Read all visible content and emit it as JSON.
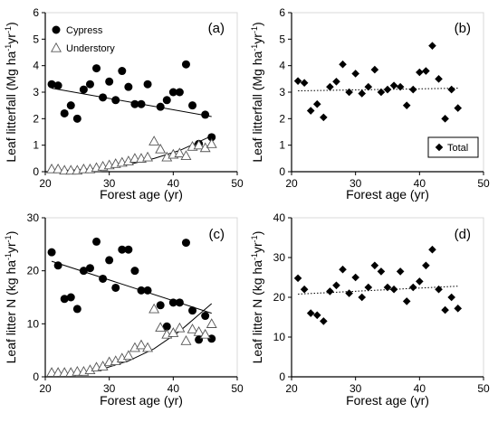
{
  "chart_data": [
    {
      "panel": "(a)",
      "type": "scatter",
      "xlabel": "Forest age (yr)",
      "ylabel": "Leaf litterfall (Mg ha⁻¹yr⁻¹)",
      "xlim": [
        20,
        50
      ],
      "ylim": [
        0,
        6
      ],
      "xticks": [
        20,
        30,
        40,
        50
      ],
      "yticks": [
        0,
        1,
        2,
        3,
        4,
        5,
        6
      ],
      "legend": {
        "position": "top-left",
        "entries": [
          "Cypress",
          "Understory"
        ]
      },
      "series": [
        {
          "name": "Cypress",
          "marker": "filled-circle",
          "x": [
            21,
            22,
            23,
            24,
            25,
            26,
            27,
            28,
            29,
            30,
            31,
            32,
            33,
            34,
            35,
            36,
            38,
            39,
            40,
            41,
            42,
            43,
            44,
            45,
            46
          ],
          "y": [
            3.3,
            3.25,
            2.2,
            2.5,
            2.0,
            3.1,
            3.3,
            3.9,
            2.8,
            3.4,
            2.7,
            3.8,
            3.2,
            2.55,
            2.55,
            3.3,
            2.45,
            2.7,
            3.0,
            3.0,
            4.05,
            2.5,
            1.05,
            2.15,
            1.3
          ]
        },
        {
          "name": "Understory",
          "marker": "open-triangle",
          "x": [
            21,
            22,
            23,
            24,
            25,
            26,
            27,
            28,
            29,
            30,
            31,
            32,
            33,
            34,
            35,
            36,
            37,
            38,
            39,
            40,
            41,
            42,
            43,
            44,
            45,
            46
          ],
          "y": [
            0.1,
            0.1,
            0.05,
            0.05,
            0.05,
            0.1,
            0.1,
            0.15,
            0.2,
            0.25,
            0.3,
            0.35,
            0.4,
            0.5,
            0.5,
            0.55,
            1.15,
            0.85,
            0.55,
            0.65,
            0.7,
            0.6,
            0.95,
            1.0,
            0.9,
            1.05
          ]
        }
      ],
      "trendlines": [
        {
          "series": "Cypress",
          "style": "solid",
          "x": [
            21,
            46
          ],
          "y": [
            3.15,
            2.08
          ]
        },
        {
          "series": "Understory",
          "style": "solid",
          "x": [
            21,
            25,
            29,
            33,
            37,
            41,
            46
          ],
          "y": [
            0.03,
            0.07,
            0.14,
            0.27,
            0.5,
            0.8,
            1.35
          ]
        }
      ]
    },
    {
      "panel": "(b)",
      "type": "scatter",
      "xlabel": "Forest age (yr)",
      "ylabel": "Leaf litterfall (Mg ha⁻¹yr⁻¹)",
      "xlim": [
        20,
        50
      ],
      "ylim": [
        0,
        6
      ],
      "xticks": [
        20,
        30,
        40,
        50
      ],
      "yticks": [
        0,
        1,
        2,
        3,
        4,
        5,
        6
      ],
      "legend": {
        "position": "bottom-right",
        "entries": [
          "Total"
        ]
      },
      "series": [
        {
          "name": "Total",
          "marker": "filled-diamond",
          "x": [
            21,
            22,
            23,
            24,
            25,
            26,
            27,
            28,
            29,
            30,
            31,
            32,
            33,
            34,
            35,
            36,
            37,
            38,
            39,
            40,
            41,
            42,
            43,
            44,
            45,
            46
          ],
          "y": [
            3.42,
            3.35,
            2.3,
            2.55,
            2.05,
            3.2,
            3.4,
            4.05,
            3.0,
            3.7,
            2.95,
            3.2,
            3.85,
            3.0,
            3.1,
            3.25,
            3.2,
            2.5,
            3.1,
            3.75,
            3.8,
            4.75,
            3.5,
            2.0,
            3.1,
            2.4
          ]
        }
      ],
      "trendlines": [
        {
          "series": "Total",
          "style": "dotted",
          "x": [
            21,
            46
          ],
          "y": [
            3.05,
            3.15
          ]
        }
      ]
    },
    {
      "panel": "(c)",
      "type": "scatter",
      "xlabel": "Forest age (yr)",
      "ylabel": "Leaf litter N (kg ha⁻¹yr⁻¹)",
      "xlim": [
        20,
        50
      ],
      "ylim": [
        0,
        30
      ],
      "xticks": [
        20,
        30,
        40,
        50
      ],
      "yticks": [
        0,
        10,
        20,
        30
      ],
      "series": [
        {
          "name": "Cypress",
          "marker": "filled-circle",
          "x": [
            21,
            22,
            23,
            24,
            25,
            26,
            27,
            28,
            29,
            30,
            31,
            32,
            33,
            34,
            35,
            36,
            38,
            39,
            40,
            41,
            42,
            43,
            44,
            45,
            46
          ],
          "y": [
            23.5,
            21,
            14.7,
            15.0,
            12.8,
            20.0,
            20.5,
            25.5,
            18.5,
            22.0,
            16.8,
            24.0,
            24.0,
            20.0,
            16.3,
            16.3,
            13.5,
            9.5,
            14.0,
            14.0,
            25.3,
            12.5,
            7.0,
            11.5,
            7.2
          ]
        },
        {
          "name": "Understory",
          "marker": "open-triangle",
          "x": [
            21,
            22,
            23,
            24,
            25,
            26,
            27,
            28,
            29,
            30,
            31,
            32,
            33,
            34,
            35,
            36,
            37,
            38,
            39,
            40,
            41,
            42,
            43,
            44,
            45,
            46
          ],
          "y": [
            0.8,
            0.8,
            0.8,
            0.8,
            1.0,
            1.0,
            1.3,
            1.8,
            2.0,
            2.8,
            3.0,
            3.5,
            4.0,
            5.5,
            6.0,
            5.5,
            12.8,
            9.3,
            8.0,
            8.3,
            9.2,
            6.8,
            9.0,
            8.5,
            8.0,
            10.0
          ]
        }
      ],
      "trendlines": [
        {
          "series": "Cypress",
          "style": "solid",
          "x": [
            21,
            46
          ],
          "y": [
            21.8,
            12.0
          ]
        },
        {
          "series": "Understory",
          "style": "solid",
          "x": [
            21,
            25,
            29,
            33,
            37,
            41,
            46
          ],
          "y": [
            0.3,
            0.7,
            1.5,
            3.0,
            5.3,
            8.6,
            13.8
          ]
        }
      ]
    },
    {
      "panel": "(d)",
      "type": "scatter",
      "xlabel": "Forest age (yr)",
      "ylabel": "Leaf litter N (kg ha⁻¹yr⁻¹)",
      "xlim": [
        20,
        50
      ],
      "ylim": [
        0,
        40
      ],
      "xticks": [
        20,
        30,
        40,
        50
      ],
      "yticks": [
        0,
        10,
        20,
        30,
        40
      ],
      "series": [
        {
          "name": "Total",
          "marker": "filled-diamond",
          "x": [
            21,
            22,
            23,
            24,
            25,
            26,
            27,
            28,
            29,
            30,
            31,
            32,
            33,
            34,
            35,
            36,
            37,
            38,
            39,
            40,
            41,
            42,
            43,
            44,
            45,
            46
          ],
          "y": [
            24.8,
            22.0,
            16.0,
            15.5,
            14.0,
            21.5,
            23.0,
            27.0,
            21.0,
            25.0,
            20.0,
            22.5,
            28.0,
            26.5,
            22.5,
            22.0,
            26.5,
            19.0,
            22.5,
            24.0,
            28.0,
            32.0,
            22.0,
            16.8,
            20.0,
            17.2
          ]
        }
      ],
      "trendlines": [
        {
          "series": "Total",
          "style": "dotted",
          "x": [
            21,
            46
          ],
          "y": [
            20.8,
            22.8
          ]
        }
      ]
    }
  ]
}
